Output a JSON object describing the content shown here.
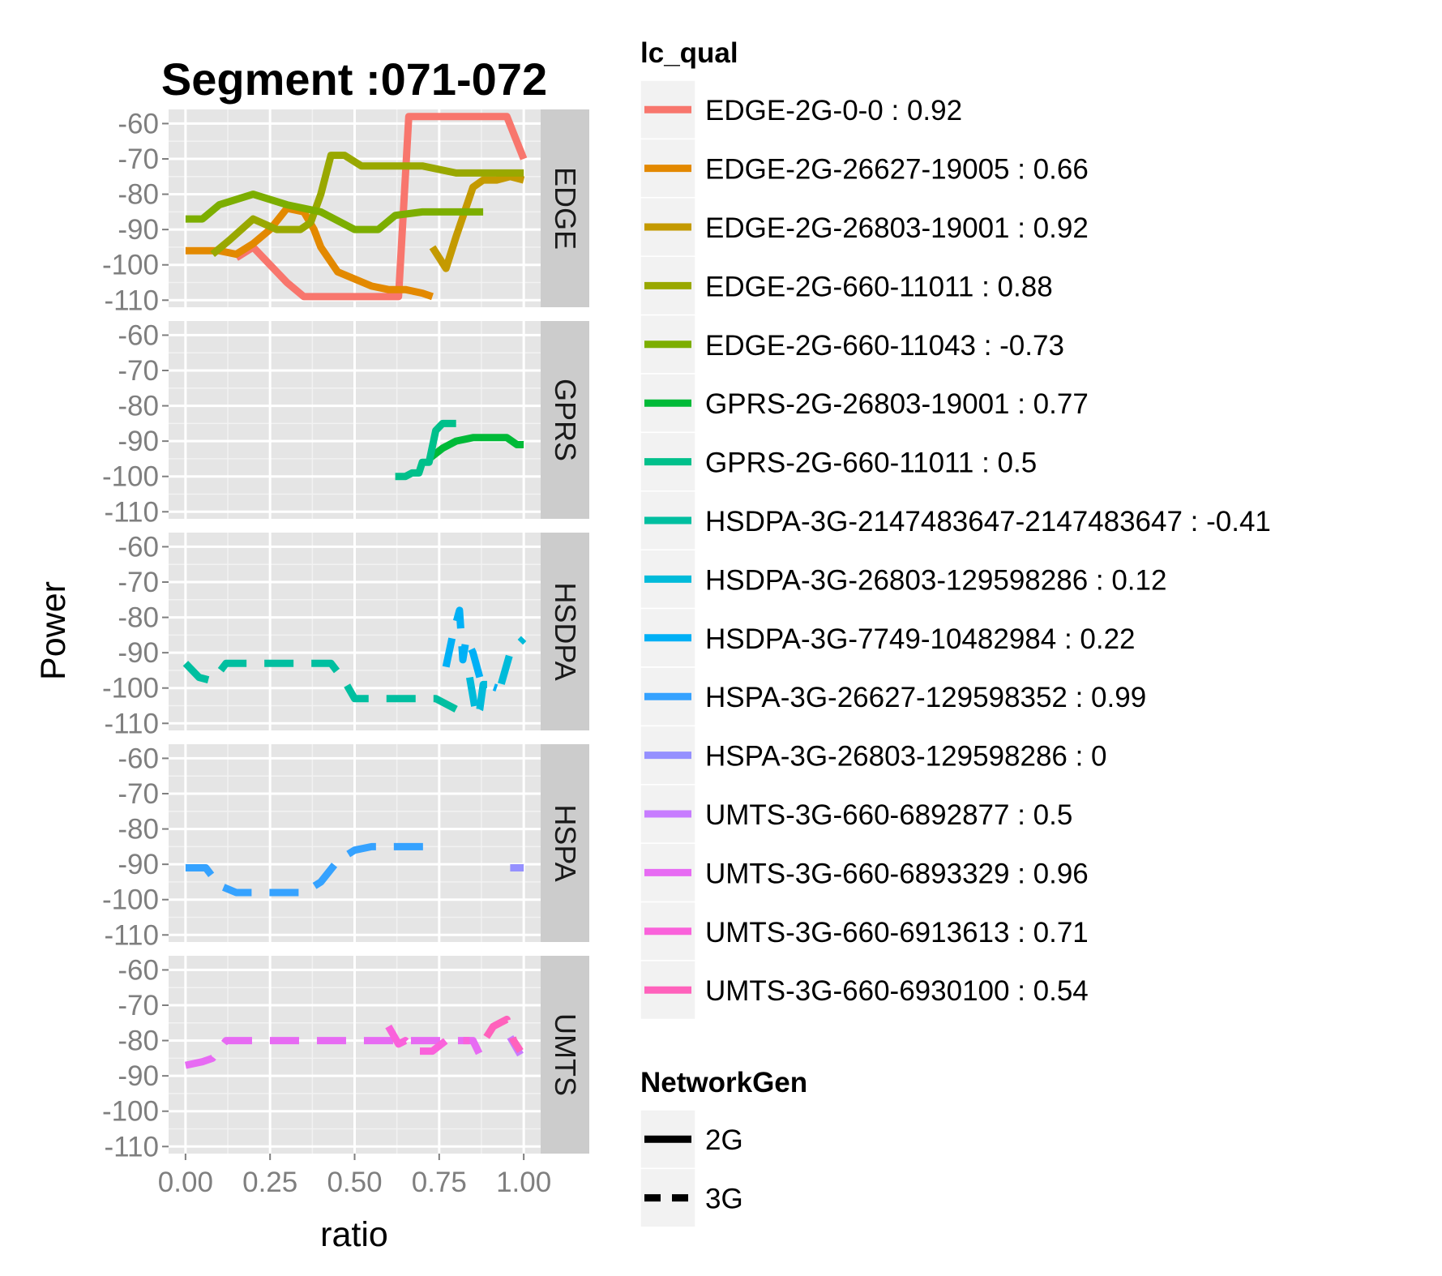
{
  "chart_data": {
    "type": "line",
    "title": "Segment :071-072",
    "xlabel": "ratio",
    "ylabel": "Power",
    "xlim": [
      -0.05,
      1.05
    ],
    "ylim": [
      -112,
      -56
    ],
    "x_ticks": [
      "0.00",
      "0.25",
      "0.50",
      "0.75",
      "1.00"
    ],
    "x_tick_values": [
      0,
      0.25,
      0.5,
      0.75,
      1.0
    ],
    "y_ticks": [
      "-60",
      "-70",
      "-80",
      "-90",
      "-100",
      "-110"
    ],
    "y_tick_values": [
      -60,
      -70,
      -80,
      -90,
      -100,
      -110
    ],
    "grid": true,
    "facets": [
      "EDGE",
      "GPRS",
      "HSDPA",
      "HSPA",
      "UMTS"
    ],
    "legend_position": "right",
    "legend": {
      "color_title": "lc_qual",
      "color_entries": [
        {
          "label": "EDGE-2G-0-0 : 0.92",
          "color": "#F8766D"
        },
        {
          "label": "EDGE-2G-26627-19005 : 0.66",
          "color": "#E38900"
        },
        {
          "label": "EDGE-2G-26803-19001 : 0.92",
          "color": "#C49A00"
        },
        {
          "label": "EDGE-2G-660-11011 : 0.88",
          "color": "#99A800"
        },
        {
          "label": "EDGE-2G-660-11043 : -0.73",
          "color": "#7CAE00"
        },
        {
          "label": "GPRS-2G-26803-19001 : 0.77",
          "color": "#00BA38"
        },
        {
          "label": "GPRS-2G-660-11011 : 0.5",
          "color": "#00C08B"
        },
        {
          "label": "HSDPA-3G-2147483647-2147483647 : -0.41",
          "color": "#00BFA0"
        },
        {
          "label": "HSDPA-3G-26803-129598286 : 0.12",
          "color": "#00BBDA"
        },
        {
          "label": "HSDPA-3G-7749-10482984 : 0.22",
          "color": "#00B0F6"
        },
        {
          "label": "HSPA-3G-26627-129598352 : 0.99",
          "color": "#35A2FF"
        },
        {
          "label": "HSPA-3G-26803-129598286 : 0",
          "color": "#9590FF"
        },
        {
          "label": "UMTS-3G-660-6892877 : 0.5",
          "color": "#C77CFF"
        },
        {
          "label": "UMTS-3G-660-6893329 : 0.96",
          "color": "#E76BF3"
        },
        {
          "label": "UMTS-3G-660-6913613 : 0.71",
          "color": "#FA62DB"
        },
        {
          "label": "UMTS-3G-660-6930100 : 0.54",
          "color": "#FF62BC"
        }
      ],
      "linetype_title": "NetworkGen",
      "linetype_entries": [
        {
          "label": "2G",
          "dashed": false
        },
        {
          "label": "3G",
          "dashed": true
        }
      ]
    },
    "series": [
      {
        "name": "EDGE-2G-0-0 : 0.92",
        "facet": "EDGE",
        "dashed": false,
        "color": "#F8766D",
        "x": [
          0.15,
          0.2,
          0.25,
          0.3,
          0.35,
          0.45,
          0.55,
          0.63,
          0.66,
          0.7,
          0.8,
          0.9,
          0.95,
          1.0
        ],
        "y": [
          -98,
          -95,
          -100,
          -105,
          -109,
          -109,
          -109,
          -109,
          -58,
          -58,
          -58,
          -58,
          -58,
          -70
        ]
      },
      {
        "name": "EDGE-2G-26627-19005 : 0.66",
        "facet": "EDGE",
        "dashed": false,
        "color": "#E38900",
        "x": [
          0.0,
          0.1,
          0.15,
          0.2,
          0.25,
          0.3,
          0.35,
          0.38,
          0.4,
          0.45,
          0.5,
          0.55,
          0.6,
          0.65,
          0.7,
          0.73
        ],
        "y": [
          -96,
          -96,
          -97,
          -94,
          -90,
          -84,
          -85,
          -90,
          -95,
          -102,
          -104,
          -106,
          -107,
          -107,
          -108,
          -109
        ]
      },
      {
        "name": "EDGE-2G-26803-19001 : 0.92",
        "facet": "EDGE",
        "dashed": false,
        "color": "#C49A00",
        "x": [
          0.73,
          0.77,
          0.8,
          0.85,
          0.88,
          0.92,
          0.96,
          1.0
        ],
        "y": [
          -95,
          -101,
          -92,
          -78,
          -76,
          -76,
          -75,
          -76
        ]
      },
      {
        "name": "EDGE-2G-660-11011 : 0.88",
        "facet": "EDGE",
        "dashed": false,
        "color": "#99A800",
        "x": [
          0.08,
          0.13,
          0.2,
          0.27,
          0.34,
          0.37,
          0.4,
          0.43,
          0.47,
          0.52,
          0.6,
          0.7,
          0.8,
          0.9,
          1.0
        ],
        "y": [
          -97,
          -93,
          -87,
          -90,
          -90,
          -88,
          -80,
          -69,
          -69,
          -72,
          -72,
          -72,
          -74,
          -74,
          -74
        ]
      },
      {
        "name": "EDGE-2G-660-11043 : -0.73",
        "facet": "EDGE",
        "dashed": false,
        "color": "#7CAE00",
        "x": [
          0.0,
          0.05,
          0.1,
          0.2,
          0.3,
          0.4,
          0.5,
          0.57,
          0.62,
          0.7,
          0.8,
          0.88
        ],
        "y": [
          -87,
          -87,
          -83,
          -80,
          -83,
          -85,
          -90,
          -90,
          -86,
          -85,
          -85,
          -85
        ]
      },
      {
        "name": "GPRS-2G-26803-19001 : 0.77",
        "facet": "GPRS",
        "dashed": false,
        "color": "#00BA38",
        "x": [
          0.72,
          0.76,
          0.8,
          0.85,
          0.9,
          0.95,
          0.98,
          1.0
        ],
        "y": [
          -95,
          -92,
          -90,
          -89,
          -89,
          -89,
          -91,
          -91
        ]
      },
      {
        "name": "GPRS-2G-660-11011 : 0.5",
        "facet": "GPRS",
        "dashed": false,
        "color": "#00C08B",
        "x": [
          0.62,
          0.65,
          0.67,
          0.69,
          0.7,
          0.72,
          0.74,
          0.76,
          0.78,
          0.8
        ],
        "y": [
          -100,
          -100,
          -99,
          -99,
          -96,
          -96,
          -87,
          -85,
          -85,
          -85
        ]
      },
      {
        "name": "HSDPA-3G-2147483647-2147483647 : -0.41",
        "facet": "HSDPA",
        "dashed": true,
        "color": "#00BFA0",
        "x": [
          0.0,
          0.04,
          0.08,
          0.12,
          0.18,
          0.25,
          0.3,
          0.38,
          0.43,
          0.47,
          0.5,
          0.6,
          0.7,
          0.74,
          0.8
        ],
        "y": [
          -93,
          -97,
          -98,
          -93,
          -93,
          -93,
          -93,
          -93,
          -93,
          -98,
          -103,
          -103,
          -103,
          -103,
          -106
        ]
      },
      {
        "name": "HSDPA-3G-26803-129598286 : 0.12",
        "facet": "HSDPA",
        "dashed": true,
        "color": "#00BBDA",
        "x": [
          0.84,
          0.86,
          0.87,
          0.88,
          0.9,
          0.93,
          0.96,
          1.0
        ],
        "y": [
          -97,
          -108,
          -106,
          -99,
          -99,
          -100,
          -90,
          -86
        ]
      },
      {
        "name": "HSDPA-3G-7749-10482984 : 0.22",
        "facet": "HSDPA",
        "dashed": true,
        "color": "#00B0F6",
        "x": [
          0.77,
          0.79,
          0.81,
          0.82,
          0.83,
          0.85,
          0.87,
          0.89,
          0.92
        ],
        "y": [
          -94,
          -85,
          -78,
          -92,
          -86,
          -90,
          -97,
          -99,
          -100
        ]
      },
      {
        "name": "HSPA-3G-26627-129598352 : 0.99",
        "facet": "HSPA",
        "dashed": true,
        "color": "#35A2FF",
        "x": [
          0.0,
          0.06,
          0.1,
          0.15,
          0.25,
          0.35,
          0.4,
          0.45,
          0.5,
          0.55,
          0.65,
          0.75
        ],
        "y": [
          -91,
          -91,
          -96,
          -98,
          -98,
          -98,
          -95,
          -89,
          -86,
          -85,
          -85,
          -85
        ]
      },
      {
        "name": "HSPA-3G-26803-129598286 : 0",
        "facet": "HSPA",
        "dashed": true,
        "color": "#9590FF",
        "x": [
          0.96,
          1.0
        ],
        "y": [
          -91,
          -91
        ]
      },
      {
        "name": "UMTS-3G-660-6892877 : 0.5",
        "facet": "UMTS",
        "dashed": true,
        "color": "#C77CFF",
        "x": [
          0.96,
          0.99
        ],
        "y": [
          -79,
          -84
        ]
      },
      {
        "name": "UMTS-3G-660-6893329 : 0.96",
        "facet": "UMTS",
        "dashed": true,
        "color": "#E76BF3",
        "x": [
          0.0,
          0.05,
          0.08,
          0.12,
          0.2,
          0.3,
          0.4,
          0.5,
          0.6,
          0.7,
          0.8,
          0.85,
          0.87,
          0.9
        ],
        "y": [
          -87,
          -86,
          -85,
          -80,
          -80,
          -80,
          -80,
          -80,
          -80,
          -80,
          -80,
          -80,
          -84,
          -82
        ]
      },
      {
        "name": "UMTS-3G-660-6913613 : 0.71",
        "facet": "UMTS",
        "dashed": true,
        "color": "#FA62DB",
        "x": [
          0.6,
          0.63,
          0.65,
          0.68,
          0.73,
          0.77,
          0.8,
          0.84
        ],
        "y": [
          -76,
          -81,
          -80,
          -83,
          -83,
          -80,
          -80,
          -80
        ]
      },
      {
        "name": "UMTS-3G-660-6930100 : 0.54",
        "facet": "UMTS",
        "dashed": true,
        "color": "#FF62BC",
        "x": [
          0.89,
          0.91,
          0.93,
          0.95,
          0.97,
          0.99
        ],
        "y": [
          -79,
          -76,
          -75,
          -74,
          -80,
          -83
        ]
      }
    ]
  }
}
